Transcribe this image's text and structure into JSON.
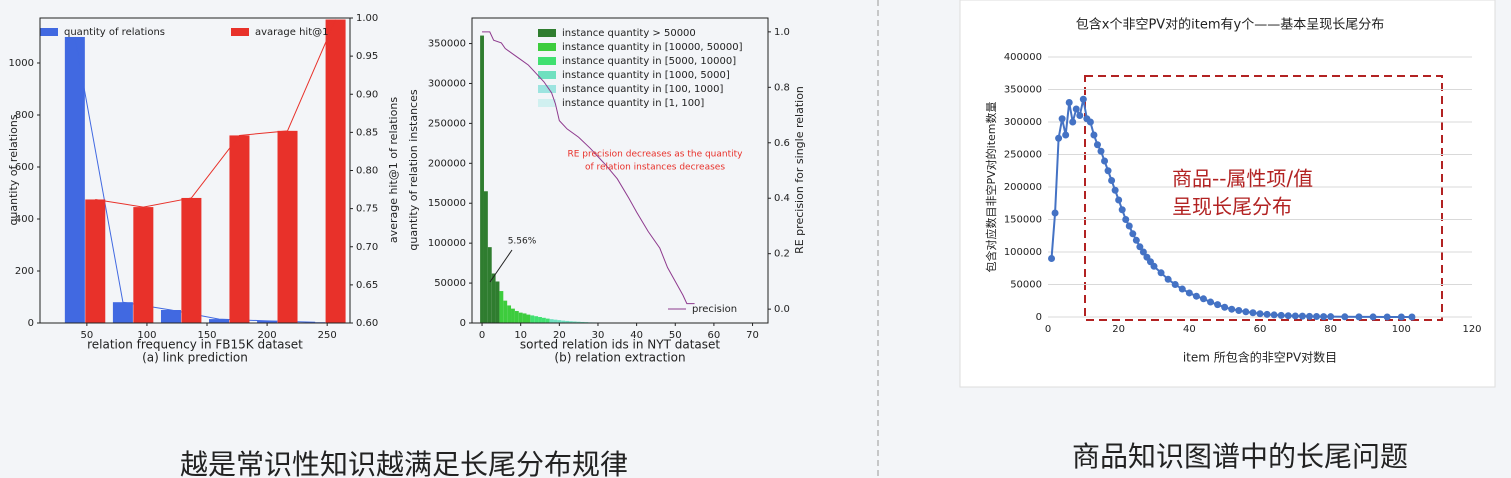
{
  "chart_data": [
    {
      "type": "bar",
      "xlabel": "relation frequency in FB15K dataset",
      "subtitle": "(a) link prediction",
      "ylabel": "quantity of relations",
      "y2label": "average hit@1 of relations",
      "xlim": [
        11,
        269
      ],
      "xticks": [
        50,
        100,
        150,
        200,
        250
      ],
      "ylim": [
        0,
        1173
      ],
      "yticks": [
        0,
        200,
        400,
        600,
        800,
        1000
      ],
      "y2lim": [
        0.6,
        1.0
      ],
      "y2ticks": [
        {
          "value": 0.6,
          "label": "0.60"
        },
        0.65,
        {
          "value": 0.7,
          "label": "0.70"
        },
        0.75,
        {
          "value": 0.8,
          "label": "0.80"
        },
        0.85,
        {
          "value": 0.9,
          "label": "0.90"
        },
        0.95,
        {
          "value": 1.0,
          "label": "1.00"
        }
      ],
      "series": [
        {
          "name": "quantity of relations",
          "color": "#4169e1",
          "type": "bar",
          "line": true,
          "x": [
            40,
            80,
            120,
            160,
            200,
            240
          ],
          "values": [
            1100,
            80,
            50,
            15,
            8,
            3
          ]
        },
        {
          "name": "avarage hit@1",
          "color": "#e8312a",
          "type": "bar",
          "line": true,
          "axis": "y2",
          "x": [
            57,
            97,
            137,
            177,
            217,
            257
          ],
          "values": [
            0.762,
            0.752,
            0.764,
            0.846,
            0.852,
            0.998
          ]
        }
      ]
    },
    {
      "type": "bar",
      "xlabel": "sorted relation ids in NYT dataset",
      "subtitle": "(b) relation extraction",
      "ylabel": "quantity of relation instances",
      "y2label": "RE precision for single relation",
      "annotations": [
        "RE precision  decreases as the  quantity",
        "of relation instances decreases",
        "5.56%"
      ],
      "xlim": [
        -2.6,
        74
      ],
      "xticks": [
        0,
        10,
        20,
        30,
        40,
        50,
        60,
        70
      ],
      "ylim": [
        0,
        382000
      ],
      "yticks": [
        0,
        50000,
        100000,
        150000,
        200000,
        250000,
        300000,
        350000
      ],
      "y2lim": [
        -0.05,
        1.05
      ],
      "y2ticks": [
        {
          "value": 0,
          "label": "0.0"
        },
        0.2,
        0.4,
        0.6,
        0.8,
        {
          "value": 1.0,
          "label": "1.0"
        }
      ],
      "series": [
        {
          "name": "instance quantity > 50000",
          "color": "#2f7d2f",
          "type": "bar",
          "x": [
            0,
            1,
            2,
            3,
            4
          ],
          "values": [
            360000,
            165000,
            95000,
            62000,
            52000
          ]
        },
        {
          "name": "instance quantity in [10000, 50000]",
          "color": "#3dcc3d",
          "type": "bar",
          "x": [
            5,
            6,
            7,
            8,
            9,
            10,
            11,
            12
          ],
          "values": [
            40000,
            28000,
            22000,
            18000,
            15000,
            13000,
            12000,
            10500
          ]
        },
        {
          "name": "instance quantity in [5000, 10000]",
          "color": "#40e070",
          "type": "bar",
          "x": [
            13,
            14,
            15,
            16,
            17
          ],
          "values": [
            9500,
            8500,
            7500,
            6500,
            5500
          ]
        },
        {
          "name": "instance quantity in [1000, 5000]",
          "color": "#6fe0bf",
          "type": "bar",
          "x": [
            18,
            19,
            20,
            21,
            22,
            23,
            24,
            25,
            26,
            27
          ],
          "values": [
            4800,
            4200,
            3600,
            3000,
            2600,
            2200,
            1900,
            1600,
            1300,
            1100
          ]
        },
        {
          "name": "instance quantity in [100, 1000]",
          "color": "#9de4e0",
          "type": "bar",
          "x": [
            28,
            29,
            30,
            31,
            32,
            33,
            34,
            35,
            36,
            37,
            38,
            39,
            40
          ],
          "values": [
            900,
            800,
            700,
            600,
            500,
            420,
            360,
            300,
            250,
            200,
            170,
            140,
            120
          ]
        },
        {
          "name": "instance quantity in [1, 100]",
          "color": "#d0f0f0",
          "type": "bar",
          "x": [
            41,
            42,
            43,
            44,
            45,
            46,
            47,
            48,
            49,
            50,
            51,
            52,
            53
          ],
          "values": [
            95,
            80,
            70,
            60,
            50,
            40,
            32,
            25,
            18,
            12,
            8,
            4,
            2
          ]
        },
        {
          "name": "precision",
          "color": "#8e3a8e",
          "type": "line",
          "axis": "y2",
          "x": [
            0,
            2,
            3,
            5,
            6,
            8,
            10,
            12,
            14,
            16,
            18,
            19,
            20,
            22,
            25,
            28,
            30,
            32,
            35,
            38,
            40,
            43,
            46,
            48,
            50,
            52,
            53,
            55
          ],
          "values": [
            1.0,
            1.0,
            0.97,
            0.96,
            0.94,
            0.92,
            0.9,
            0.88,
            0.85,
            0.82,
            0.78,
            0.74,
            0.68,
            0.65,
            0.62,
            0.58,
            0.55,
            0.52,
            0.47,
            0.4,
            0.35,
            0.28,
            0.22,
            0.15,
            0.1,
            0.05,
            0.02,
            0.02
          ]
        }
      ]
    },
    {
      "type": "line",
      "title": "包含x个非空PV对的item有y个——基本呈现长尾分布",
      "xlabel": "item 所包含的非空PV对数目",
      "ylabel": "包含对应数目非空PV对的item数量",
      "annotations": [
        "商品--属性项/值",
        "呈现长尾分布"
      ],
      "grid": true,
      "xlim": [
        0,
        120
      ],
      "xticks": [
        0,
        20,
        40,
        60,
        80,
        100,
        120
      ],
      "ylim": [
        0,
        400000
      ],
      "yticks": [
        0,
        50000,
        100000,
        150000,
        200000,
        250000,
        300000,
        350000,
        400000
      ],
      "series": [
        {
          "name": "item",
          "color": "#4472c4",
          "type": "line",
          "x": [
            1,
            2,
            3,
            4,
            5,
            6,
            7,
            8,
            9,
            10,
            11,
            12,
            13,
            14,
            15,
            16,
            17,
            18,
            19,
            20,
            21,
            22,
            23,
            24,
            25,
            26,
            27,
            28,
            29,
            30,
            32,
            34,
            36,
            38,
            40,
            42,
            44,
            46,
            48,
            50,
            52,
            54,
            56,
            58,
            60,
            62,
            64,
            66,
            68,
            70,
            72,
            74,
            76,
            78,
            80,
            84,
            88,
            92,
            96,
            100,
            103
          ],
          "values": [
            90000,
            160000,
            275000,
            305000,
            280000,
            330000,
            300000,
            320000,
            310000,
            335000,
            305000,
            300000,
            280000,
            265000,
            255000,
            240000,
            225000,
            210000,
            195000,
            180000,
            165000,
            150000,
            140000,
            128000,
            118000,
            108000,
            100000,
            92000,
            85000,
            78000,
            68000,
            58000,
            50000,
            43000,
            37000,
            32000,
            28000,
            23000,
            19000,
            15000,
            12000,
            10000,
            8000,
            6500,
            5000,
            4000,
            3200,
            2500,
            2000,
            1600,
            1300,
            1000,
            800,
            600,
            500,
            300,
            200,
            120,
            80,
            50,
            30
          ]
        }
      ]
    }
  ],
  "captions": [
    "越是常识性知识越满足长尾分布规律",
    "商品知识图谱中的长尾问题"
  ]
}
